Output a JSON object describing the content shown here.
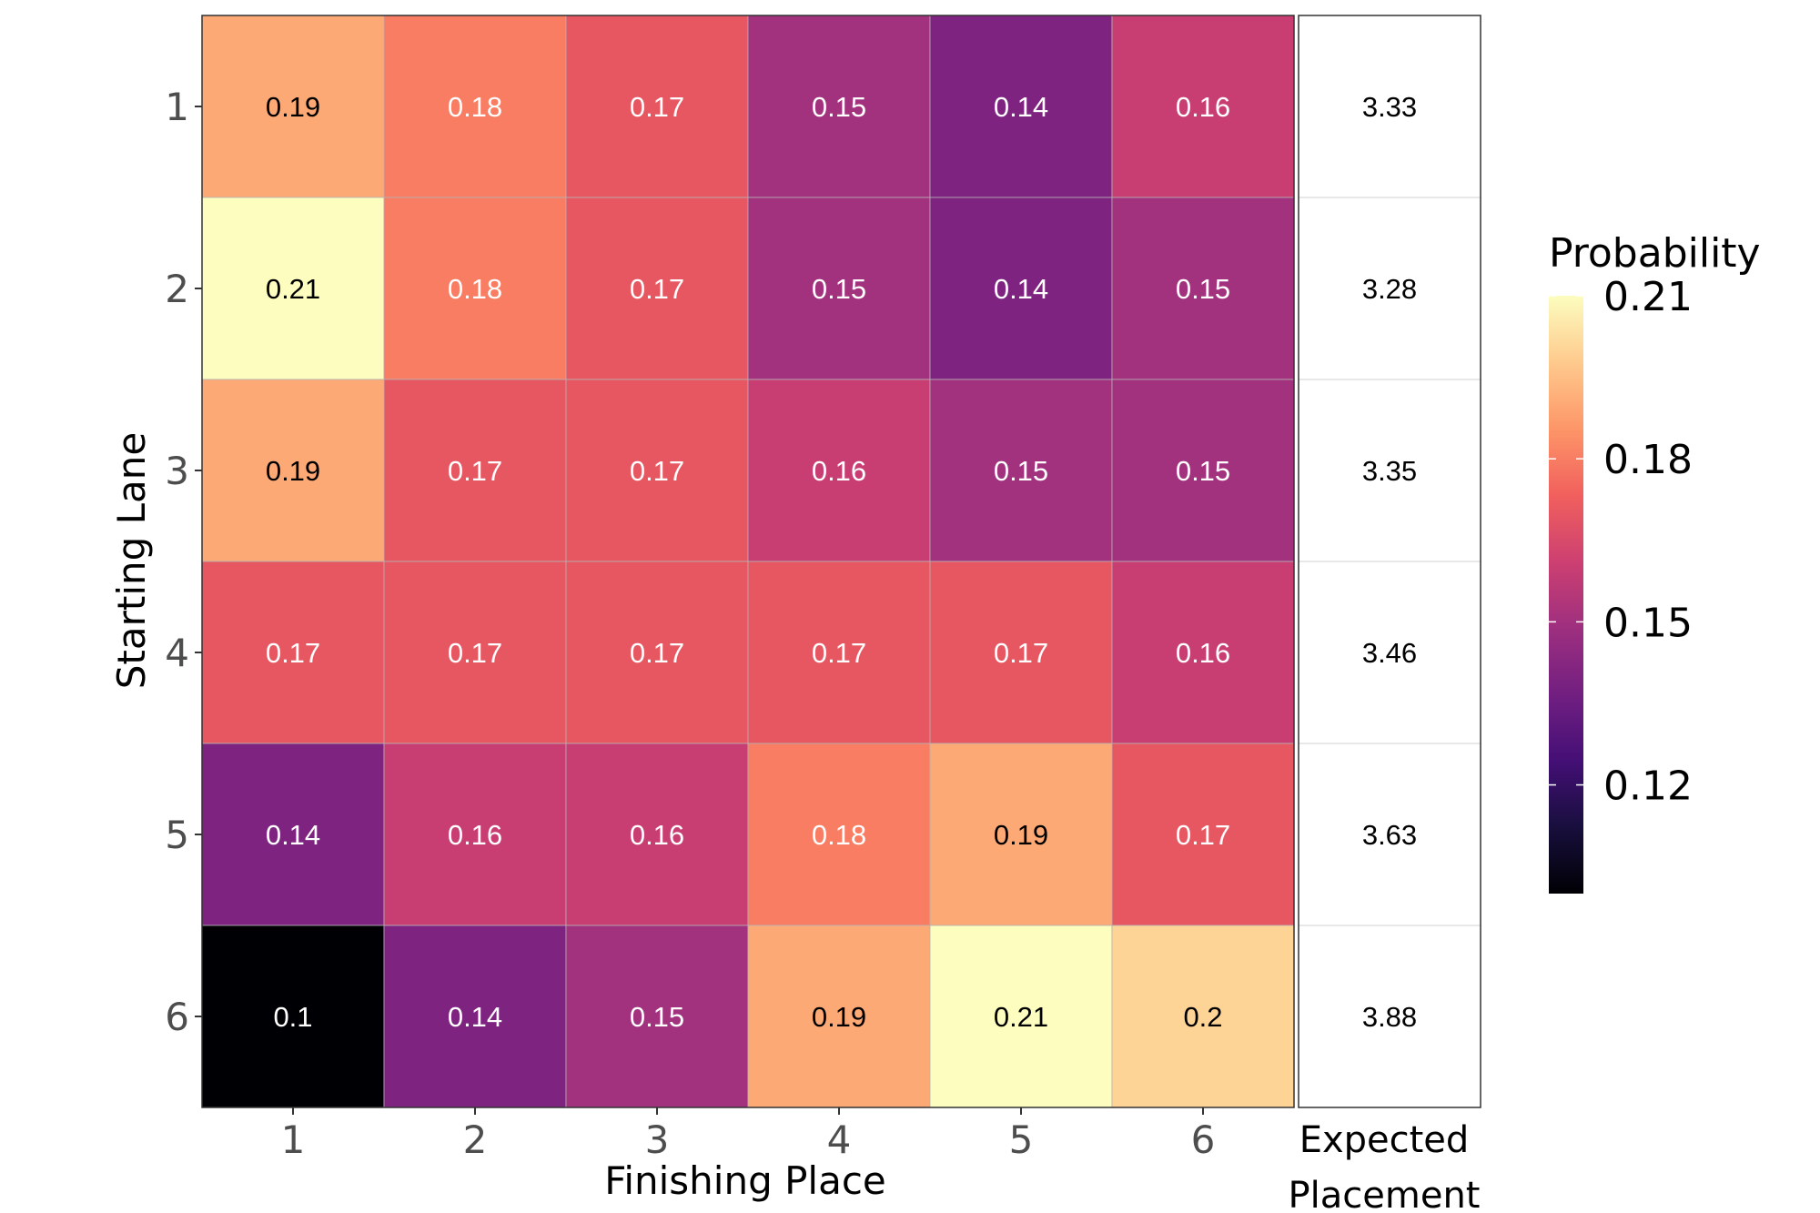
{
  "chart_data": {
    "type": "heatmap",
    "xlabel": "Finishing Place",
    "ylabel": "Starting Lane",
    "x_categories": [
      "1",
      "2",
      "3",
      "4",
      "5",
      "6"
    ],
    "y_categories": [
      "1",
      "2",
      "3",
      "4",
      "5",
      "6"
    ],
    "values": [
      [
        0.19,
        0.18,
        0.17,
        0.15,
        0.14,
        0.16
      ],
      [
        0.21,
        0.18,
        0.17,
        0.15,
        0.14,
        0.15
      ],
      [
        0.19,
        0.17,
        0.17,
        0.16,
        0.15,
        0.15
      ],
      [
        0.17,
        0.17,
        0.17,
        0.17,
        0.17,
        0.16
      ],
      [
        0.14,
        0.16,
        0.16,
        0.18,
        0.19,
        0.17
      ],
      [
        0.1,
        0.14,
        0.15,
        0.19,
        0.21,
        0.2
      ]
    ],
    "cell_labels": [
      [
        "0.19",
        "0.18",
        "0.17",
        "0.15",
        "0.14",
        "0.16"
      ],
      [
        "0.21",
        "0.18",
        "0.17",
        "0.15",
        "0.14",
        "0.15"
      ],
      [
        "0.19",
        "0.17",
        "0.17",
        "0.16",
        "0.15",
        "0.15"
      ],
      [
        "0.17",
        "0.17",
        "0.17",
        "0.17",
        "0.17",
        "0.16"
      ],
      [
        "0.14",
        "0.16",
        "0.16",
        "0.18",
        "0.19",
        "0.17"
      ],
      [
        "0.1",
        "0.14",
        "0.15",
        "0.19",
        "0.21",
        "0.2"
      ]
    ],
    "expected_placement": {
      "label_line1": "Expected",
      "label_line2": "Placement",
      "values": [
        "3.33",
        "3.28",
        "3.35",
        "3.46",
        "3.63",
        "3.88"
      ]
    },
    "colorbar": {
      "title": "Probability",
      "scale": "magma",
      "range": [
        0.1,
        0.21
      ],
      "ticks": [
        0.12,
        0.15,
        0.18,
        0.21
      ],
      "tick_labels": [
        "0.12",
        "0.15",
        "0.18",
        "0.21"
      ]
    },
    "colors": {
      "magma_stops": [
        "#000004",
        "#180f3d",
        "#440f76",
        "#721f81",
        "#9e2f7f",
        "#cd4071",
        "#f1605d",
        "#fd9668",
        "#feca8d",
        "#fcfdbf"
      ]
    }
  }
}
